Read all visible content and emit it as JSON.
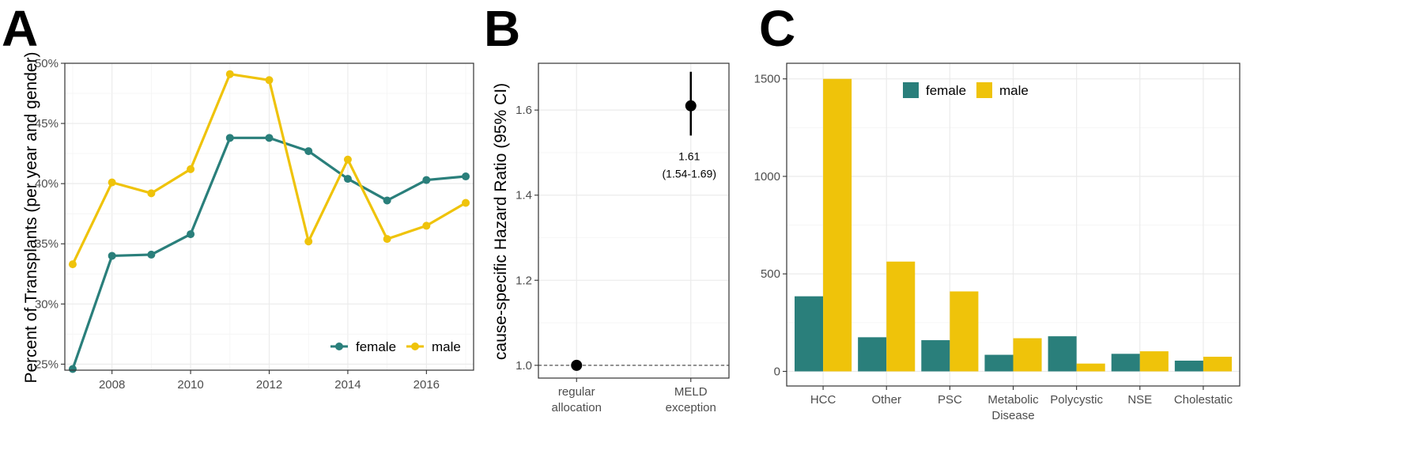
{
  "panels": {
    "a_label": "A",
    "b_label": "B",
    "c_label": "C"
  },
  "colors": {
    "female": "#2a7f7b",
    "male": "#efc30a",
    "point": "#000000"
  },
  "chart_data": [
    {
      "id": "A",
      "type": "line",
      "ylabel": "Percent of Transplants (per year and gender)",
      "xlabel": "",
      "x": [
        2007,
        2008,
        2009,
        2010,
        2011,
        2012,
        2013,
        2014,
        2015,
        2016,
        2017
      ],
      "xlim": [
        2006.8,
        2017.2
      ],
      "ylim": [
        24.5,
        50.0
      ],
      "xticks": [
        2008,
        2010,
        2012,
        2014,
        2016
      ],
      "xtick_labels": [
        "2008",
        "2010",
        "2012",
        "2014",
        "2016"
      ],
      "yticks": [
        25,
        30,
        35,
        40,
        45,
        50
      ],
      "ytick_labels": [
        "25%",
        "30%",
        "35%",
        "40%",
        "45%",
        "50%"
      ],
      "legend": {
        "position": "bottom-right",
        "entries": [
          "female",
          "male"
        ]
      },
      "series": [
        {
          "name": "female",
          "values": [
            24.6,
            34.0,
            34.1,
            35.8,
            43.8,
            43.8,
            42.7,
            40.4,
            38.6,
            40.3,
            40.6
          ]
        },
        {
          "name": "male",
          "values": [
            33.3,
            40.1,
            39.2,
            41.2,
            49.1,
            48.6,
            35.2,
            42.0,
            35.4,
            36.5,
            38.4
          ]
        }
      ]
    },
    {
      "id": "B",
      "type": "scatter",
      "ylabel": "cause-specific Hazard Ratio (95% CI)",
      "xlabel": "",
      "categories": [
        "regular allocation",
        "MELD exception"
      ],
      "category_lines": [
        [
          "regular",
          "allocation"
        ],
        [
          "MELD",
          "exception"
        ]
      ],
      "values": [
        1.0,
        1.61
      ],
      "ci_lower": [
        null,
        1.54
      ],
      "ci_upper": [
        null,
        1.69
      ],
      "reference_line": 1.0,
      "ylim": [
        0.97,
        1.71
      ],
      "yticks": [
        1.0,
        1.2,
        1.4,
        1.6
      ],
      "ytick_labels": [
        "1.0",
        "1.2",
        "1.4",
        "1.6"
      ],
      "annotation": {
        "value": "1.61",
        "interval": "(1.54-1.69)"
      }
    },
    {
      "id": "C",
      "type": "bar",
      "ylabel": "",
      "xlabel": "",
      "categories": [
        "HCC",
        "Other",
        "PSC",
        "Metabolic Disease",
        "Polycystic",
        "NSE",
        "Cholestatic"
      ],
      "category_lines": [
        [
          "HCC"
        ],
        [
          "Other"
        ],
        [
          "PSC"
        ],
        [
          "Metabolic",
          "Disease"
        ],
        [
          "Polycystic"
        ],
        [
          "NSE"
        ],
        [
          "Cholestatic"
        ]
      ],
      "ylim": [
        -75,
        1580
      ],
      "yticks": [
        0,
        500,
        1000,
        1500
      ],
      "ytick_labels": [
        "0",
        "500",
        "1000",
        "1500"
      ],
      "legend": {
        "position": "top",
        "entries": [
          "female",
          "male"
        ]
      },
      "series": [
        {
          "name": "female",
          "values": [
            385,
            175,
            160,
            85,
            180,
            90,
            55
          ]
        },
        {
          "name": "male",
          "values": [
            1500,
            563,
            410,
            170,
            40,
            103,
            75
          ]
        }
      ]
    }
  ]
}
